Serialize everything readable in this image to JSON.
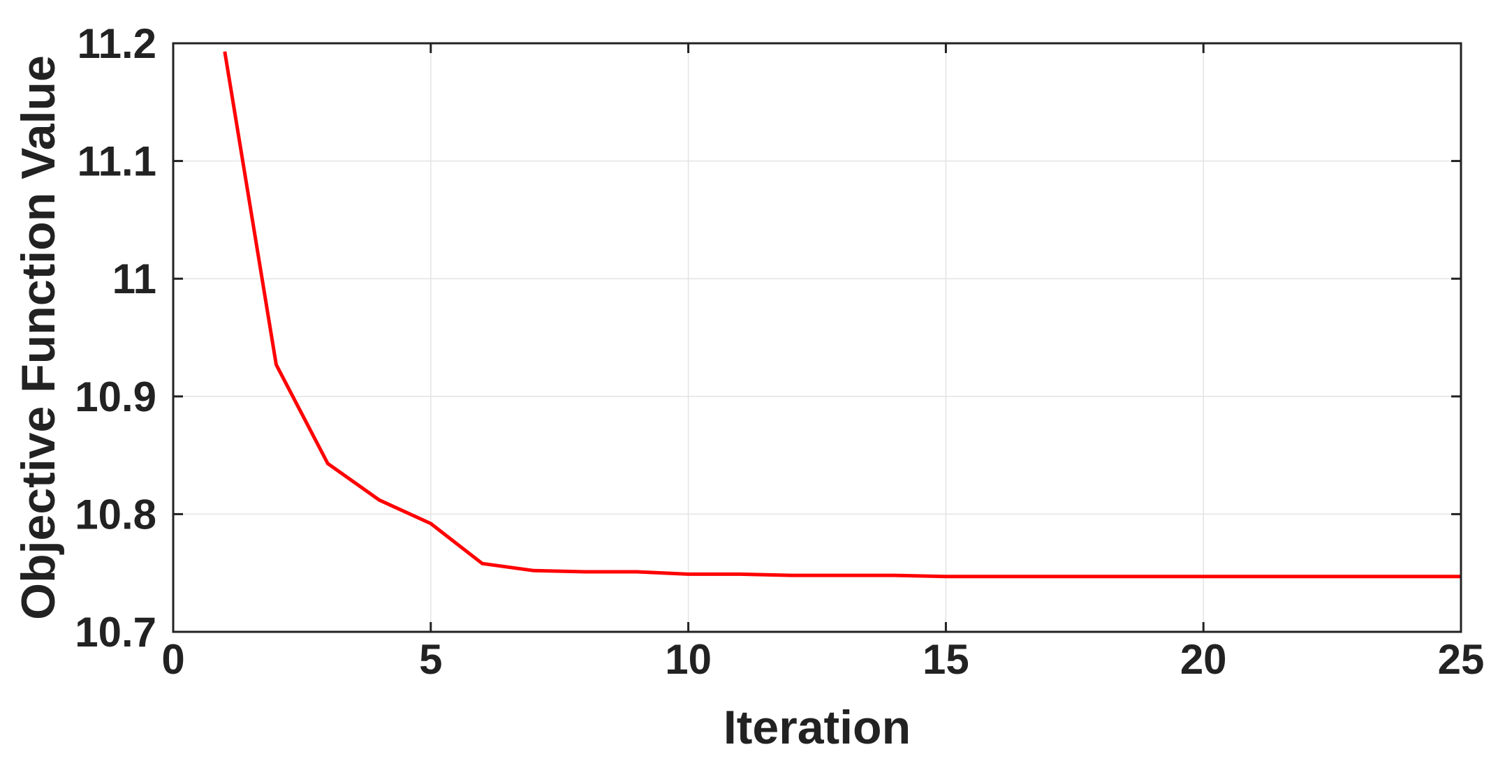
{
  "chart_data": {
    "type": "line",
    "title": "",
    "xlabel": "Iteration",
    "ylabel": "Objective Function Value",
    "xlim": [
      0,
      25
    ],
    "ylim": [
      10.7,
      11.2
    ],
    "xticks": [
      0,
      5,
      10,
      15,
      20,
      25
    ],
    "xtick_labels": [
      "0",
      "5",
      "10",
      "15",
      "20",
      "25"
    ],
    "yticks": [
      10.7,
      10.8,
      10.9,
      11.0,
      11.1,
      11.2
    ],
    "ytick_labels": [
      "10.7",
      "10.8",
      "10.9",
      "11",
      "11.1",
      "11.2"
    ],
    "grid": true,
    "series": [
      {
        "color": "#ff0000",
        "x": [
          1,
          2,
          3,
          4,
          5,
          6,
          7,
          8,
          9,
          10,
          11,
          12,
          13,
          14,
          15,
          16,
          17,
          18,
          19,
          20,
          21,
          22,
          23,
          24,
          25
        ],
        "y": [
          11.193,
          10.927,
          10.843,
          10.812,
          10.792,
          10.758,
          10.752,
          10.751,
          10.751,
          10.749,
          10.749,
          10.748,
          10.748,
          10.748,
          10.747,
          10.747,
          10.747,
          10.747,
          10.747,
          10.747,
          10.747,
          10.747,
          10.747,
          10.747,
          10.747
        ]
      }
    ]
  }
}
